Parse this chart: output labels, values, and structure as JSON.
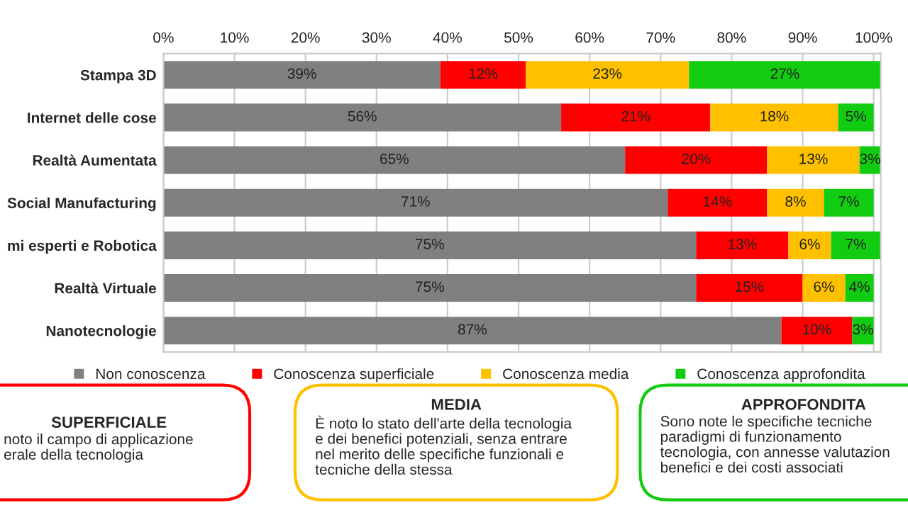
{
  "chart_data": {
    "type": "bar",
    "orientation": "horizontal",
    "stacked": true,
    "categories": [
      "Stampa 3D",
      "Internet delle cose",
      "Realtà Aumentata",
      "Social Manufacturing",
      "mi esperti e Robotica",
      "Realtà Virtuale",
      "Nanotecnologie"
    ],
    "series": [
      {
        "name": "Non conoscenza",
        "color": "#808080",
        "values": [
          39,
          56,
          65,
          71,
          75,
          75,
          87
        ],
        "value_labels": [
          "39%",
          "56%",
          "65%",
          "71%",
          "75%",
          "75%",
          "87%"
        ]
      },
      {
        "name": "Conoscenza superficiale",
        "color": "#ff0000",
        "values": [
          12,
          21,
          20,
          14,
          13,
          15,
          10
        ],
        "value_labels": [
          "12%",
          "21%",
          "20%",
          "14%",
          "13%",
          "15%",
          "10%"
        ]
      },
      {
        "name": "Conoscenza media",
        "color": "#ffc000",
        "values": [
          23,
          18,
          13,
          8,
          6,
          6,
          0
        ],
        "value_labels": [
          "23%",
          "18%",
          "13%",
          "8%",
          "6%",
          "6%",
          null
        ]
      },
      {
        "name": "Conoscenza approfondita",
        "color": "#11cc11",
        "values": [
          27,
          5,
          3,
          7,
          7,
          4,
          3
        ],
        "value_labels": [
          "27%",
          "5%",
          "3%",
          "7%",
          "7%",
          "4%",
          "3%"
        ]
      }
    ],
    "xlim": [
      0,
      101
    ],
    "xticks": [
      {
        "value": 0,
        "label": "0%"
      },
      {
        "value": 10,
        "label": "10%"
      },
      {
        "value": 20,
        "label": "20%"
      },
      {
        "value": 30,
        "label": "30%"
      },
      {
        "value": 40,
        "label": "40%"
      },
      {
        "value": 50,
        "label": "50%"
      },
      {
        "value": 60,
        "label": "60%"
      },
      {
        "value": 70,
        "label": "70%"
      },
      {
        "value": 80,
        "label": "80%"
      },
      {
        "value": 90,
        "label": "90%"
      },
      {
        "value": 100,
        "label": "100%"
      }
    ],
    "grid": "x",
    "legend": "bottom",
    "annotations": [
      "SUPERFICIALE",
      "noto il campo di applicazione\nerale della tecnologia",
      "MEDIA",
      "È noto lo stato dell'arte della tecnologia\ne dei benefici potenziali, senza entrare\nnel merito delle specifiche funzionali e\ntecniche della stessa",
      "APPROFONDITA",
      "Sono note le specifiche tecniche\nparadigmi di funzionamento\ntecnologia, con annesse valutazion\nbenefici e dei costi associati"
    ]
  }
}
